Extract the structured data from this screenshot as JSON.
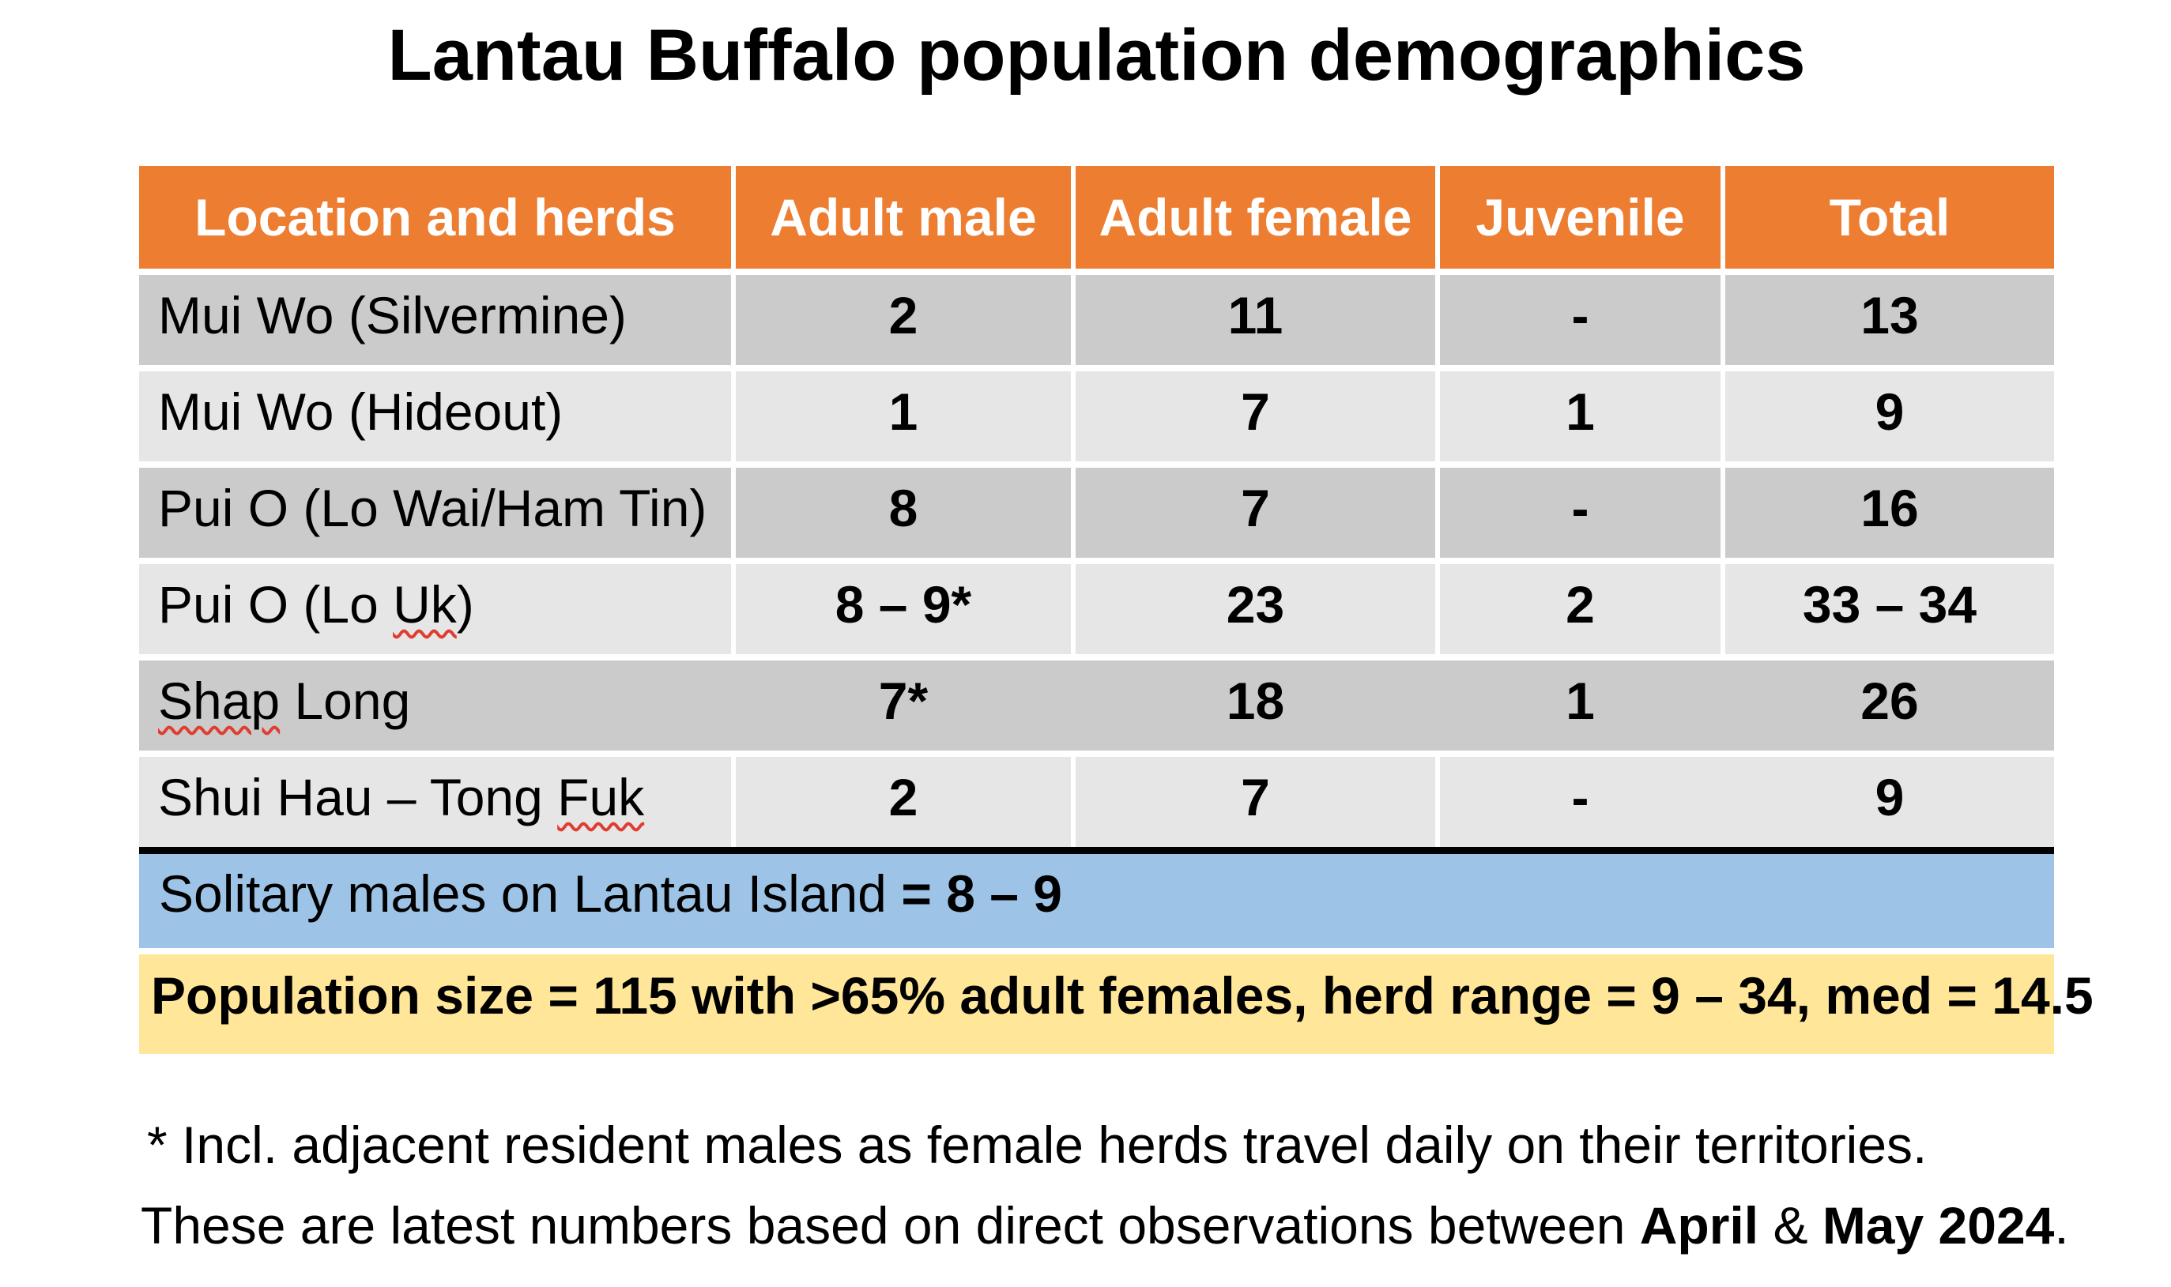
{
  "title": "Lantau Buffalo population demographics",
  "table": {
    "columns": [
      "Location and herds",
      "Adult male",
      "Adult female",
      "Juvenile",
      "Total"
    ],
    "rows": [
      {
        "loc_pre": "Mui Wo (Silvermine)",
        "loc_mis": "",
        "loc_post": "",
        "adult_male": "2",
        "adult_female": "11",
        "juvenile": "-",
        "total": "13"
      },
      {
        "loc_pre": "Mui Wo (Hideout)",
        "loc_mis": "",
        "loc_post": "",
        "adult_male": "1",
        "adult_female": "7",
        "juvenile": "1",
        "total": "9"
      },
      {
        "loc_pre": "Pui O (Lo Wai/Ham Tin)",
        "loc_mis": "",
        "loc_post": "",
        "adult_male": "8",
        "adult_female": "7",
        "juvenile": "-",
        "total": "16"
      },
      {
        "loc_pre": "Pui O (Lo ",
        "loc_mis": "Uk",
        "loc_post": ")",
        "adult_male": "8 – 9*",
        "adult_female": "23",
        "juvenile": "2",
        "total": "33 – 34"
      },
      {
        "loc_pre": "",
        "loc_mis": "Shap",
        "loc_post": " Long",
        "adult_male": "7*",
        "adult_female": "18",
        "juvenile": "1",
        "total": "26"
      },
      {
        "loc_pre": "Shui Hau – Tong ",
        "loc_mis": "Fuk",
        "loc_post": "",
        "adult_male": "2",
        "adult_female": "7",
        "juvenile": "-",
        "total": "9"
      }
    ],
    "solitary_label": "Solitary males on Lantau Island",
    "solitary_value": "= 8 – 9",
    "summary": "Population size = 115 with >65% adult females, herd range = 9 – 34, med = 14.5"
  },
  "footnotes": {
    "asterisk_note": "* Incl. adjacent resident males as female herds travel daily on their territories.",
    "observation_prefix": "These are latest numbers based on direct observations between ",
    "observation_bold_1": "April",
    "observation_sep": " & ",
    "observation_bold_2": "May 2024",
    "observation_suffix": "."
  },
  "colors": {
    "header_bg": "#ED7D31",
    "header_text": "#FFFFFF",
    "row_dark": "#CBCBCB",
    "row_light": "#E7E6E6",
    "solitary_bg": "#9DC3E6",
    "summary_bg": "#FFE699",
    "divider": "#000000",
    "spellcheck_underline": "#E03C31"
  }
}
